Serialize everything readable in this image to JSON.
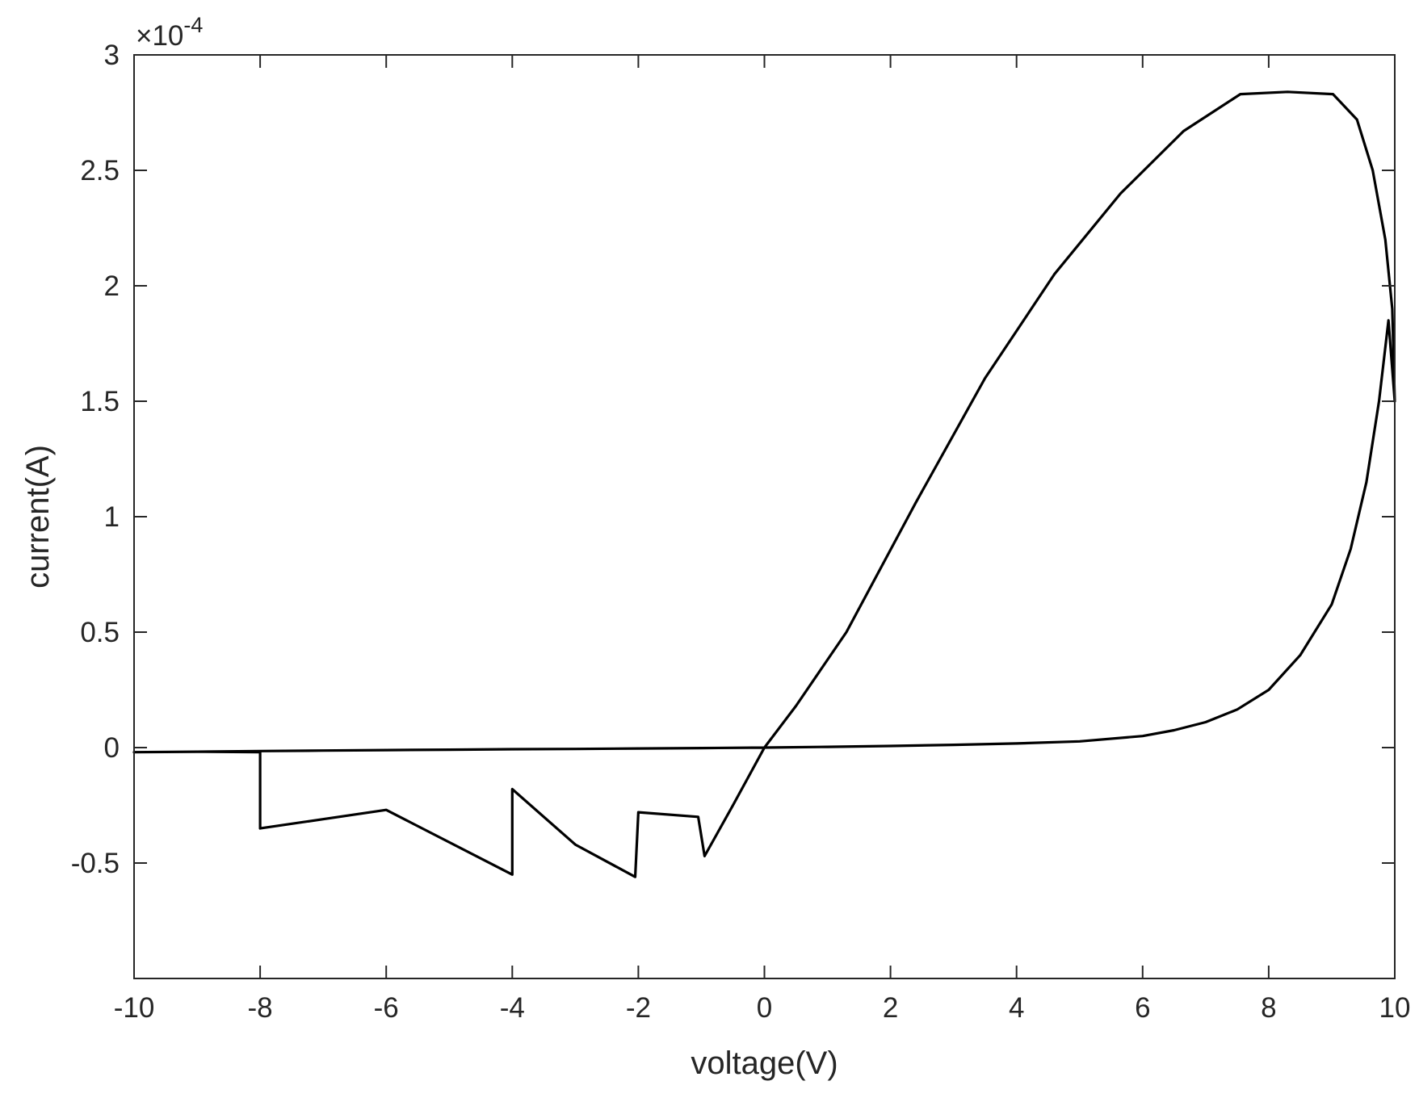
{
  "chart_data": {
    "type": "line",
    "title": "",
    "xlabel": "voltage(V)",
    "ylabel": "current(A)",
    "y_exponent": {
      "base": "×10",
      "power": "-4"
    },
    "xlim": [
      -10,
      10
    ],
    "ylim": [
      -1,
      3
    ],
    "y_scale_factor": 0.0001,
    "xticks": [
      -10,
      -8,
      -6,
      -4,
      -2,
      0,
      2,
      4,
      6,
      8,
      10
    ],
    "xtick_labels": [
      "-10",
      "-8",
      "-6",
      "-4",
      "-2",
      "0",
      "2",
      "4",
      "6",
      "8",
      "10"
    ],
    "yticks": [
      -0.5,
      0,
      0.5,
      1,
      1.5,
      2,
      2.5,
      3
    ],
    "ytick_labels": [
      "-0.5",
      "0",
      "0.5",
      "1",
      "1.5",
      "2",
      "2.5",
      "3"
    ],
    "grid": false,
    "legend": null,
    "colors": {
      "line": "#000000",
      "axes": "#262626",
      "background": "#ffffff"
    },
    "series": [
      {
        "x": [
          -10,
          -9,
          -8,
          -7,
          -6,
          -5,
          -4,
          -3,
          -2,
          -1,
          0,
          1,
          2,
          3,
          4,
          5,
          6,
          6.5,
          7,
          7.5,
          8,
          8.5,
          9,
          9.3,
          9.55,
          9.75,
          9.9,
          10,
          9.96,
          9.85,
          9.65,
          9.4,
          9.02,
          8.3,
          7.55,
          6.65,
          5.65,
          4.6,
          3.5,
          2.4,
          1.3,
          0.5,
          0,
          -0.5,
          -0.95,
          -1.05,
          -2.0,
          -2.05,
          -3.0,
          -4.0,
          -4.0,
          -6.0,
          -8.0,
          -8.0,
          -9.0,
          -10.0
        ],
        "y": [
          -0.02,
          -0.018,
          -0.015,
          -0.013,
          -0.011,
          -0.009,
          -0.007,
          -0.006,
          -0.004,
          -0.002,
          0,
          0.003,
          0.007,
          0.012,
          0.018,
          0.027,
          0.05,
          0.075,
          0.11,
          0.165,
          0.25,
          0.4,
          0.62,
          0.86,
          1.15,
          1.5,
          1.85,
          1.5,
          1.9,
          2.2,
          2.5,
          2.72,
          2.83,
          2.84,
          2.83,
          2.67,
          2.4,
          2.05,
          1.6,
          1.06,
          0.5,
          0.18,
          0,
          -0.25,
          -0.47,
          -0.3,
          -0.28,
          -0.56,
          -0.42,
          -0.18,
          -0.55,
          -0.27,
          -0.35,
          -0.02,
          -0.018,
          -0.02
        ]
      }
    ]
  }
}
